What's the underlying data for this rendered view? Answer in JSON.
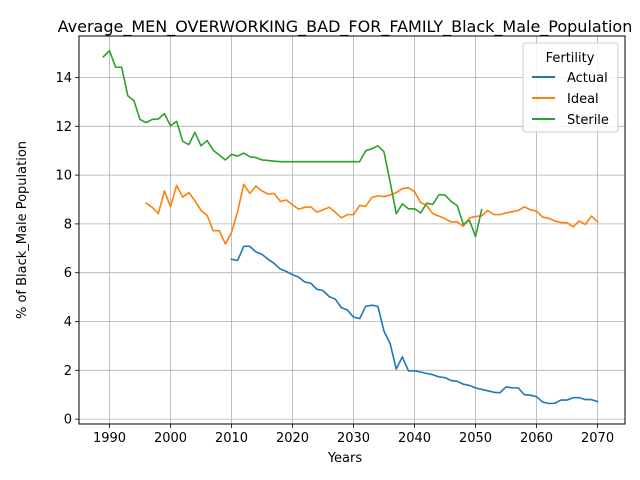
{
  "chart_data": {
    "type": "line",
    "title": "Average_MEN_OVERWORKING_BAD_FOR_FAMILY_Black_Male_Population",
    "xlabel": "Years",
    "ylabel": "% of Black_Male Population",
    "xlim": [
      1985,
      2074.5
    ],
    "ylim": [
      -0.2,
      15.7
    ],
    "xticks": [
      1990,
      2000,
      2010,
      2020,
      2030,
      2040,
      2050,
      2060,
      2070
    ],
    "yticks": [
      0,
      2,
      4,
      6,
      8,
      10,
      12,
      14
    ],
    "grid": true,
    "legend": {
      "title": "Fertility",
      "placement": "top-right"
    },
    "series": [
      {
        "name": "Actual",
        "color": "#1f77b4",
        "x": [
          2010,
          2011,
          2012,
          2013,
          2014,
          2015,
          2016,
          2017,
          2018,
          2019,
          2020,
          2021,
          2022,
          2023,
          2024,
          2025,
          2026,
          2027,
          2028,
          2029,
          2030,
          2031,
          2032,
          2033,
          2034,
          2035,
          2036,
          2037,
          2038,
          2039,
          2040,
          2041,
          2042,
          2043,
          2044,
          2045,
          2046,
          2047,
          2048,
          2049,
          2050,
          2051,
          2052,
          2053,
          2054,
          2055,
          2056,
          2057,
          2058,
          2059,
          2060,
          2061,
          2062,
          2063,
          2064,
          2065,
          2066,
          2067,
          2068,
          2069,
          2070
        ],
        "values": [
          6.55,
          6.5,
          7.08,
          7.08,
          6.85,
          6.75,
          6.55,
          6.38,
          6.15,
          6.05,
          5.92,
          5.82,
          5.62,
          5.57,
          5.32,
          5.27,
          5.02,
          4.92,
          4.57,
          4.47,
          4.18,
          4.12,
          4.62,
          4.67,
          4.62,
          3.6,
          3.1,
          2.05,
          2.55,
          1.98,
          1.98,
          1.93,
          1.87,
          1.82,
          1.73,
          1.7,
          1.58,
          1.55,
          1.43,
          1.38,
          1.28,
          1.22,
          1.16,
          1.1,
          1.08,
          1.32,
          1.28,
          1.28,
          1.0,
          0.98,
          0.92,
          0.7,
          0.64,
          0.65,
          0.78,
          0.78,
          0.88,
          0.88,
          0.8,
          0.8,
          0.72
        ]
      },
      {
        "name": "Ideal",
        "color": "#ff7f0e",
        "x": [
          1996,
          1997,
          1998,
          1999,
          2000,
          2001,
          2002,
          2003,
          2004,
          2005,
          2006,
          2007,
          2008,
          2009,
          2010,
          2011,
          2012,
          2013,
          2014,
          2015,
          2016,
          2017,
          2018,
          2019,
          2020,
          2021,
          2022,
          2023,
          2024,
          2025,
          2026,
          2027,
          2028,
          2029,
          2030,
          2031,
          2032,
          2033,
          2034,
          2035,
          2036,
          2037,
          2038,
          2039,
          2040,
          2041,
          2042,
          2043,
          2044,
          2045,
          2046,
          2047,
          2048,
          2049,
          2050,
          2051,
          2052,
          2053,
          2054,
          2055,
          2056,
          2057,
          2058,
          2059,
          2060,
          2061,
          2062,
          2063,
          2064,
          2065,
          2066,
          2067,
          2068,
          2069,
          2070
        ],
        "values": [
          8.85,
          8.68,
          8.42,
          9.35,
          8.7,
          9.58,
          9.1,
          9.28,
          8.95,
          8.55,
          8.35,
          7.72,
          7.72,
          7.18,
          7.65,
          8.5,
          9.62,
          9.25,
          9.55,
          9.35,
          9.22,
          9.25,
          8.92,
          8.98,
          8.78,
          8.6,
          8.68,
          8.7,
          8.48,
          8.58,
          8.68,
          8.48,
          8.25,
          8.38,
          8.38,
          8.75,
          8.72,
          9.08,
          9.15,
          9.12,
          9.18,
          9.28,
          9.45,
          9.48,
          9.32,
          8.88,
          8.75,
          8.42,
          8.32,
          8.22,
          8.08,
          8.08,
          7.9,
          8.25,
          8.3,
          8.33,
          8.55,
          8.38,
          8.38,
          8.45,
          8.5,
          8.55,
          8.7,
          8.58,
          8.52,
          8.28,
          8.23,
          8.12,
          8.06,
          8.05,
          7.88,
          8.12,
          7.98,
          8.32,
          8.08
        ]
      },
      {
        "name": "Sterile",
        "color": "#2ca02c",
        "x": [
          1989,
          1990,
          1991,
          1992,
          1993,
          1994,
          1995,
          1996,
          1997,
          1998,
          1999,
          2000,
          2001,
          2002,
          2003,
          2004,
          2005,
          2006,
          2007,
          2008,
          2009,
          2010,
          2011,
          2012,
          2013,
          2014,
          2015,
          2016,
          2017,
          2018,
          2019,
          2020,
          2021,
          2022,
          2023,
          2024,
          2025,
          2026,
          2027,
          2028,
          2029,
          2030,
          2031,
          2032,
          2033,
          2034,
          2035,
          2036,
          2037,
          2038,
          2039,
          2040,
          2041,
          2042,
          2043,
          2044,
          2045,
          2046,
          2047,
          2048,
          2049,
          2050,
          2051
        ],
        "values": [
          14.85,
          15.1,
          14.42,
          14.42,
          13.25,
          13.05,
          12.28,
          12.15,
          12.28,
          12.3,
          12.52,
          12.02,
          12.2,
          11.38,
          11.25,
          11.75,
          11.2,
          11.42,
          11.02,
          10.82,
          10.62,
          10.85,
          10.78,
          10.9,
          10.75,
          10.72,
          10.62,
          10.6,
          10.57,
          10.55,
          10.55,
          10.55,
          10.55,
          10.55,
          10.55,
          10.55,
          10.55,
          10.55,
          10.55,
          10.55,
          10.55,
          10.55,
          10.55,
          11.0,
          11.08,
          11.2,
          10.95,
          9.72,
          8.42,
          8.82,
          8.62,
          8.62,
          8.45,
          8.85,
          8.8,
          9.2,
          9.18,
          8.92,
          8.75,
          7.98,
          8.15,
          7.48,
          8.58
        ]
      }
    ]
  }
}
